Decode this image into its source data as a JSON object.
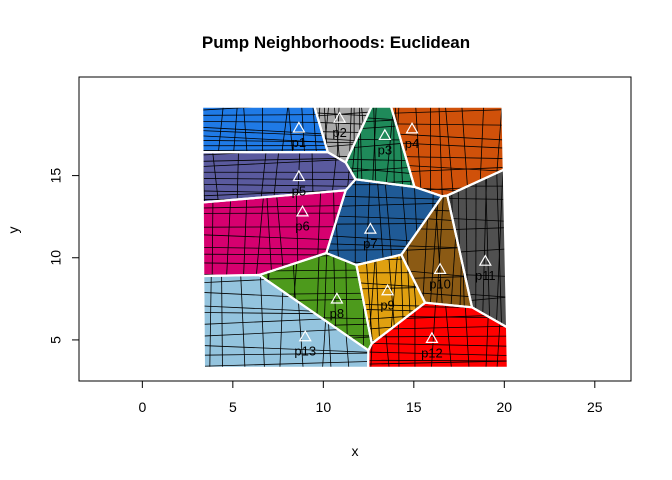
{
  "chart_data": {
    "type": "scatter",
    "title": "Pump Neighborhoods: Euclidean",
    "xlabel": "x",
    "ylabel": "y",
    "xlim": [
      -3.5,
      27
    ],
    "ylim": [
      2.5,
      21
    ],
    "xticks": [
      0,
      5,
      10,
      15,
      20,
      25
    ],
    "yticks": [
      5,
      10,
      15
    ],
    "grid": false,
    "pumps": [
      {
        "name": "p1",
        "x": 8.65,
        "y": 17.9,
        "color": "#1f7ae6"
      },
      {
        "name": "p2",
        "x": 10.9,
        "y": 18.5,
        "color": "#a9a9a9"
      },
      {
        "name": "p3",
        "x": 13.4,
        "y": 17.45,
        "color": "#1f8a5a"
      },
      {
        "name": "p4",
        "x": 14.9,
        "y": 17.85,
        "color": "#d0510a"
      },
      {
        "name": "p5",
        "x": 8.65,
        "y": 14.95,
        "color": "#5a5a9e"
      },
      {
        "name": "p6",
        "x": 8.85,
        "y": 12.8,
        "color": "#d6006f"
      },
      {
        "name": "p7",
        "x": 12.6,
        "y": 11.75,
        "color": "#1f5a96"
      },
      {
        "name": "p8",
        "x": 10.75,
        "y": 7.5,
        "color": "#4d9a1c"
      },
      {
        "name": "p9",
        "x": 13.55,
        "y": 8.0,
        "color": "#e0a010"
      },
      {
        "name": "p10",
        "x": 16.45,
        "y": 9.3,
        "color": "#8b5a14"
      },
      {
        "name": "p11",
        "x": 18.95,
        "y": 9.8,
        "color": "#505050"
      },
      {
        "name": "p12",
        "x": 16.0,
        "y": 5.1,
        "color": "#ff0000"
      },
      {
        "name": "p13",
        "x": 9.0,
        "y": 5.2,
        "color": "#94c4de"
      }
    ],
    "cell_boundaries": [
      [
        [
          6.3,
          19
        ],
        [
          12.7,
          19
        ]
      ]
    ]
  }
}
